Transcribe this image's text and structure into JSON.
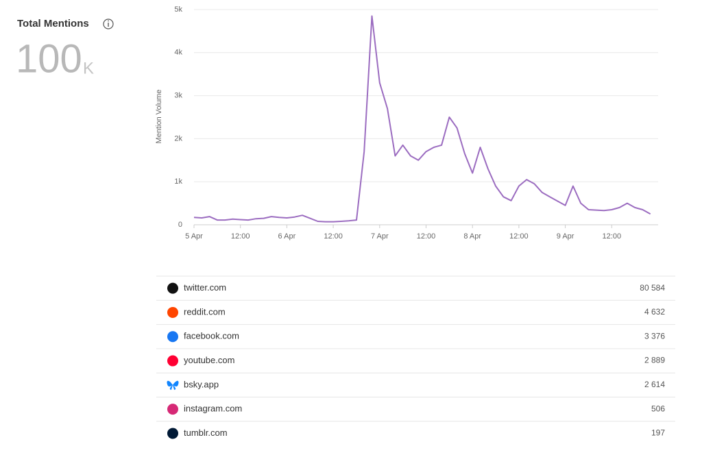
{
  "header": {
    "title": "Total Mentions",
    "total": "100",
    "unit": "K"
  },
  "chart_data": {
    "type": "line",
    "ylabel": "Mention Volume",
    "categories": [
      "5 Apr",
      null,
      null,
      null,
      null,
      null,
      "12:00",
      null,
      null,
      null,
      null,
      null,
      "6 Apr",
      null,
      null,
      null,
      null,
      null,
      "12:00",
      null,
      null,
      null,
      null,
      null,
      "7 Apr",
      null,
      null,
      null,
      null,
      null,
      "12:00",
      null,
      null,
      null,
      null,
      null,
      "8 Apr",
      null,
      null,
      null,
      null,
      null,
      "12:00",
      null,
      null,
      null,
      null,
      null,
      "9 Apr",
      null,
      null,
      null,
      null,
      null,
      "12:00",
      null,
      null,
      null,
      null,
      null
    ],
    "values": [
      170,
      160,
      190,
      110,
      110,
      130,
      120,
      110,
      140,
      150,
      190,
      170,
      160,
      180,
      220,
      150,
      80,
      70,
      70,
      80,
      90,
      110,
      1700,
      4850,
      3300,
      2700,
      1600,
      1850,
      1600,
      1500,
      1700,
      1800,
      1850,
      2500,
      2250,
      1650,
      1200,
      1800,
      1300,
      900,
      650,
      560,
      900,
      1050,
      950,
      750,
      650,
      550,
      450,
      900,
      500,
      350,
      340,
      330,
      350,
      400,
      500,
      400,
      350,
      250
    ],
    "color": "#9b6cc0",
    "ylim": [
      0,
      5000
    ],
    "yticks": [
      0,
      {
        "value": 1000,
        "label": "1k"
      },
      {
        "value": 2000,
        "label": "2k"
      },
      {
        "value": 3000,
        "label": "3k"
      },
      {
        "value": 4000,
        "label": "4k"
      },
      {
        "value": 5000,
        "label": "5k"
      }
    ],
    "grid": true
  },
  "table": {
    "rows": [
      {
        "name": "twitter.com",
        "count": "80 584"
      },
      {
        "name": "reddit.com",
        "count": "4 632"
      },
      {
        "name": "facebook.com",
        "count": "3 376"
      },
      {
        "name": "youtube.com",
        "count": "2 889"
      },
      {
        "name": "bsky.app",
        "count": "2 614"
      },
      {
        "name": "instagram.com",
        "count": "506"
      },
      {
        "name": "tumblr.com",
        "count": "197"
      }
    ]
  }
}
